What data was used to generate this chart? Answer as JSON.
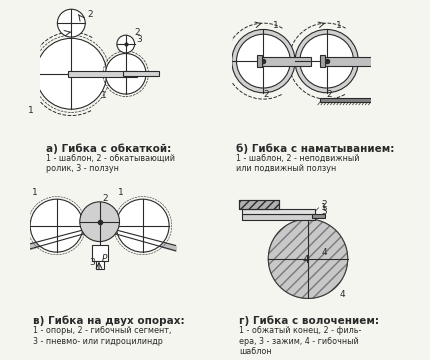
{
  "background_color": "#f5f5f0",
  "line_color": "#2a2a2a",
  "hatch_color": "#2a2a2a",
  "title_a": "а) Гибка с обкаткой:",
  "desc_a": "1 - шаблон, 2 - обкатывающий\nролик, 3 - ползун",
  "title_b": "б) Гибка с наматыванием:",
  "desc_b": "1 - шаблон, 2 - неподвижный\nили подвижный ползун",
  "title_c": "в) Гибка на двух опорах:",
  "desc_c": "1 - опоры, 2 - гибочный сегмент,\n3 - пневмо- или гидроцилиндр",
  "title_d": "г) Гибка с волочением:",
  "desc_d": "1 - обжатый конец, 2 - филь-\nера, 3 - зажим, 4 - гибочный\nшаблон",
  "font_size_title": 7.5,
  "font_size_label": 6.5,
  "font_family": "DejaVu Sans"
}
